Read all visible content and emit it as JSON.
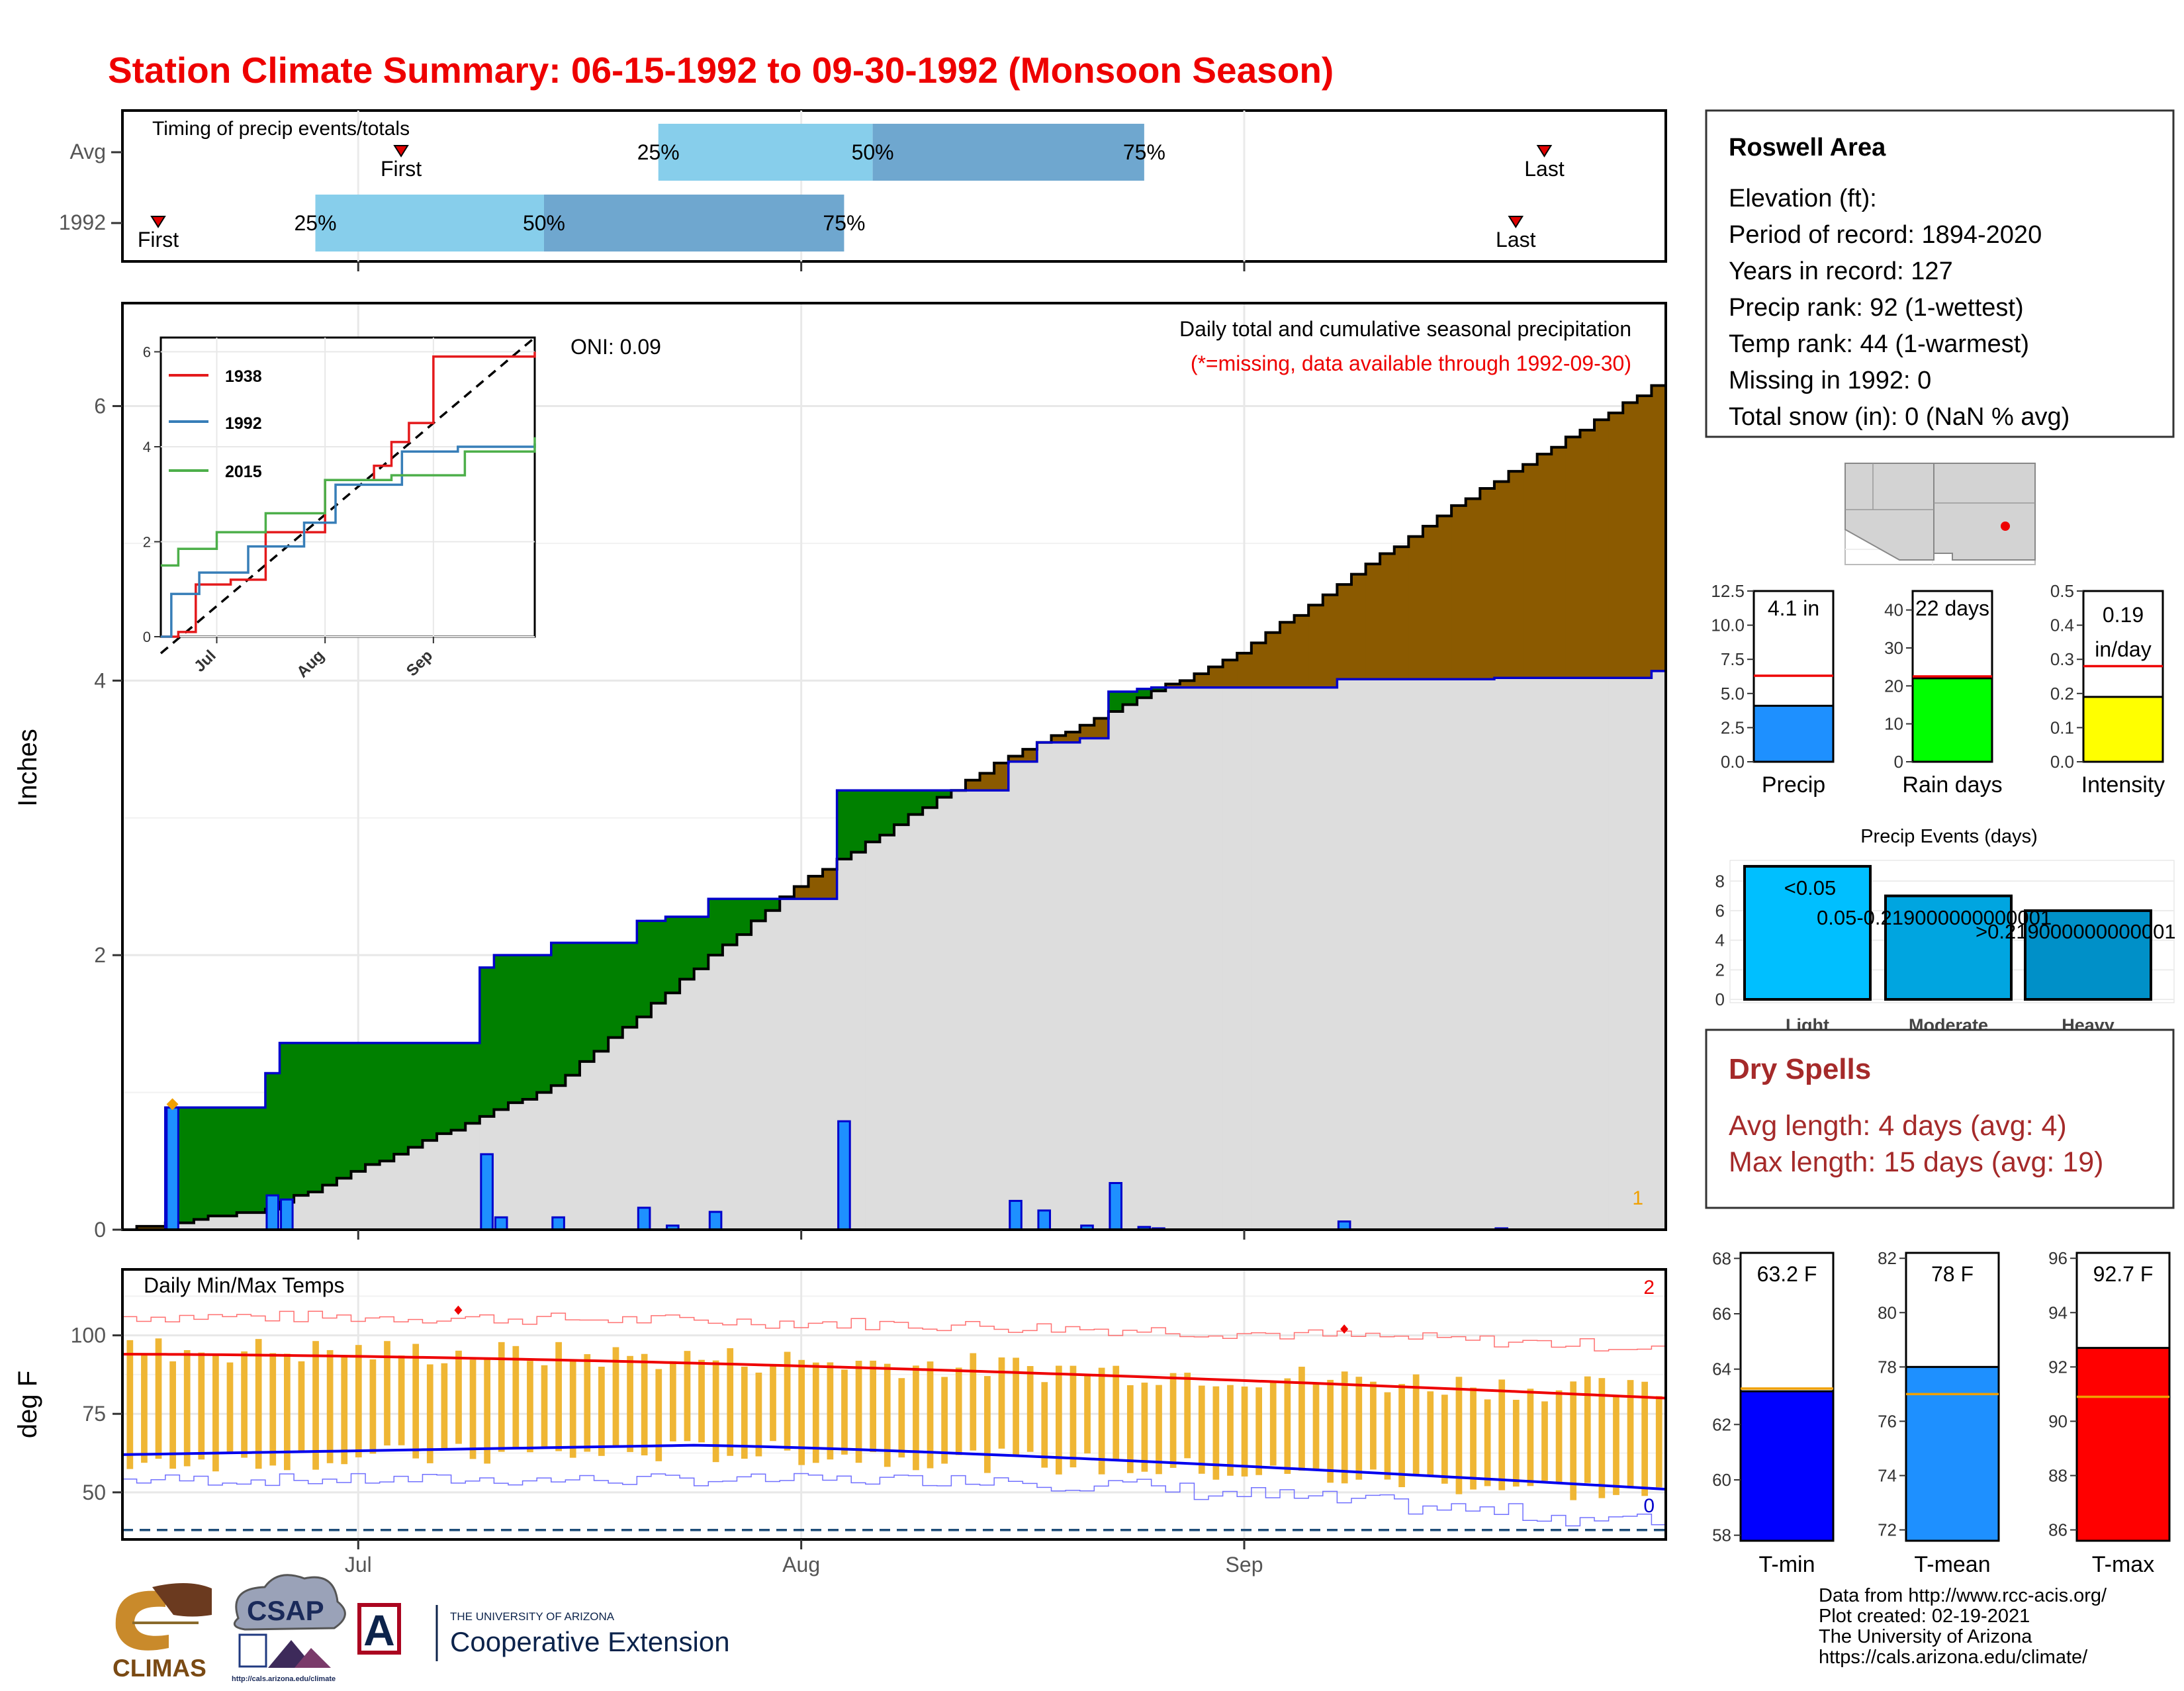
{
  "title": "Station Climate Summary: 06-15-1992 to 09-30-1992 (Monsoon Season)",
  "timing": {
    "title": "Timing of precip events/totals",
    "rows": [
      {
        "label": "Avg",
        "first": "07-04",
        "last": "09-22",
        "p25": "07-22",
        "p50": "08-06",
        "p75": "08-25"
      },
      {
        "label": "1992",
        "first": "06-17",
        "last": "09-20",
        "p25": "06-28",
        "p50": "07-14",
        "p75": "08-04"
      }
    ],
    "first_label": "First",
    "last_label": "Last",
    "p25_label": "25%",
    "p50_label": "50%",
    "p75_label": "75%",
    "colors": {
      "light": "#87ceeb",
      "dark": "#6fa7cf"
    }
  },
  "precip_panel": {
    "ylabel": "Inches",
    "note_title": "Daily total and cumulative seasonal precipitation",
    "note_missing": "(*=missing, data available through 1992-09-30)",
    "oni": "ONI: 0.09",
    "corner_count": "1",
    "yticks": [
      "0",
      "2",
      "4",
      "6"
    ],
    "xticks": [
      "Jul",
      "Aug",
      "Sep"
    ],
    "colors": {
      "above": "#008000",
      "below": "#8b5a00",
      "bars": "#1e90ff",
      "fill": "#dddddd"
    }
  },
  "inset": {
    "yticks": [
      "0",
      "2",
      "4",
      "6"
    ],
    "xticks": [
      "Jul",
      "Aug",
      "Sep"
    ],
    "legend": [
      "1938",
      "1992",
      "2015"
    ],
    "colors": [
      "#e41a1c",
      "#377eb8",
      "#4daf4a"
    ]
  },
  "temp_panel": {
    "ylabel": "deg F",
    "title": "Daily Min/Max Temps",
    "count_max": "2",
    "count_min": "0",
    "yticks": [
      "50",
      "75",
      "100"
    ],
    "xticks": [
      "Jul",
      "Aug",
      "Sep"
    ]
  },
  "station_box": {
    "name": "Roswell Area",
    "lines": [
      "Elevation (ft):",
      "Period of record: 1894-2020",
      "Years in record: 127",
      "Precip rank: 92 (1-wettest)",
      "Temp rank: 44 (1-warmest)",
      "Missing in 1992: 0",
      "Total snow (in): 0 (NaN % avg)"
    ]
  },
  "mini_bars": [
    {
      "label": "Precip",
      "value_text": "4.1 in",
      "value": 4.1,
      "avg": 6.3,
      "ymax": 12.5,
      "yticks": [
        "0.0",
        "2.5",
        "5.0",
        "7.5",
        "10.0",
        "12.5"
      ],
      "color": "#1e90ff"
    },
    {
      "label": "Rain days",
      "value_text": "22 days",
      "value": 22,
      "avg": 22.5,
      "ymax": 45,
      "yticks": [
        "0",
        "10",
        "20",
        "30",
        "40"
      ],
      "color": "#00ff00"
    },
    {
      "label": "Intensity",
      "value_text": "0.19",
      "value_text2": "in/day",
      "value": 0.19,
      "avg": 0.28,
      "ymax": 0.5,
      "yticks": [
        "0.0",
        "0.1",
        "0.2",
        "0.3",
        "0.4",
        "0.5"
      ],
      "color": "#ffff00"
    }
  ],
  "precip_events": {
    "title": "Precip Events (days)",
    "yticks": [
      "0",
      "2",
      "4",
      "6",
      "8"
    ],
    "categories": [
      "Light",
      "Moderate",
      "Heavy"
    ],
    "thresholds": [
      "<0.05",
      "0.05-0.219000000000001",
      ">0.219000000000001"
    ],
    "values": [
      9,
      7,
      6
    ],
    "colors": [
      "#00bfff",
      "#00a5e0",
      "#0090c8"
    ]
  },
  "dry_spells": {
    "title": "Dry Spells",
    "avg_length": "Avg length: 4 days (avg: 4)",
    "max_length": "Max length: 15 days (avg: 19)",
    "color": "#a52a2a"
  },
  "temp_bars": [
    {
      "label": "T-min",
      "value_text": "63.2 F",
      "value": 63.2,
      "avg": 63.3,
      "ymin": 57.8,
      "ymax": 68.2,
      "yticks": [
        "58",
        "60",
        "62",
        "64",
        "66",
        "68"
      ],
      "color": "#0000ff"
    },
    {
      "label": "T-mean",
      "value_text": "78 F",
      "value": 78.0,
      "avg": 77.0,
      "ymin": 71.6,
      "ymax": 82.2,
      "yticks": [
        "72",
        "74",
        "76",
        "78",
        "80",
        "82"
      ],
      "color": "#1e90ff"
    },
    {
      "label": "T-max",
      "value_text": "92.7 F",
      "value": 92.7,
      "avg": 90.9,
      "ymin": 85.6,
      "ymax": 96.2,
      "yticks": [
        "86",
        "88",
        "90",
        "92",
        "94",
        "96"
      ],
      "color": "#ff0000"
    }
  ],
  "logos": {
    "climas": "CLIMAS",
    "csap": "CSAP",
    "csap_url": "http://cals.arizona.edu/climate",
    "ua_small": "THE UNIVERSITY OF ARIZONA",
    "ua_big": "Cooperative Extension",
    "ua_letter": "A"
  },
  "footer": [
    "Data from http://www.rcc-acis.org/",
    "Plot created: 02-19-2021",
    "The University of Arizona",
    "https://cals.arizona.edu/climate/"
  ],
  "chart_data": [
    {
      "type": "bar",
      "title": "Timing of precip events/totals",
      "categories": [
        "Avg",
        "1992"
      ],
      "series": [
        {
          "name": "First",
          "values": [
            "07-04",
            "06-17"
          ]
        },
        {
          "name": "25%",
          "values": [
            "07-22",
            "06-28"
          ]
        },
        {
          "name": "50%",
          "values": [
            "08-06",
            "07-14"
          ]
        },
        {
          "name": "75%",
          "values": [
            "08-25",
            "08-04"
          ]
        },
        {
          "name": "Last",
          "values": [
            "09-22",
            "09-20"
          ]
        }
      ]
    },
    {
      "type": "area",
      "title": "Daily total and cumulative seasonal precipitation",
      "ylabel": "Inches",
      "ylim": [
        0,
        6.75
      ],
      "x_range": [
        "1992-06-15",
        "1992-09-30"
      ],
      "daily_precip": [
        [
          "06-18",
          0.89
        ],
        [
          "06-25",
          0.25
        ],
        [
          "06-26",
          0.22
        ],
        [
          "07-10",
          0.55
        ],
        [
          "07-11",
          0.09
        ],
        [
          "07-15",
          0.09
        ],
        [
          "07-21",
          0.16
        ],
        [
          "07-23",
          0.03
        ],
        [
          "07-26",
          0.13
        ],
        [
          "08-04",
          0.79
        ],
        [
          "08-16",
          0.21
        ],
        [
          "08-18",
          0.14
        ],
        [
          "08-21",
          0.03
        ],
        [
          "08-23",
          0.34
        ],
        [
          "08-25",
          0.02
        ],
        [
          "08-26",
          0.01
        ],
        [
          "09-08",
          0.06
        ],
        [
          "09-19",
          0.01
        ]
      ],
      "cumulative_1992": [
        [
          "06-15",
          0.0
        ],
        [
          "06-18",
          0.89
        ],
        [
          "06-25",
          1.14
        ],
        [
          "06-26",
          1.36
        ],
        [
          "07-10",
          1.91
        ],
        [
          "07-11",
          2.0
        ],
        [
          "07-15",
          2.09
        ],
        [
          "07-21",
          2.25
        ],
        [
          "07-23",
          2.28
        ],
        [
          "07-26",
          2.41
        ],
        [
          "08-04",
          3.2
        ],
        [
          "08-16",
          3.41
        ],
        [
          "08-18",
          3.55
        ],
        [
          "08-21",
          3.58
        ],
        [
          "08-23",
          3.92
        ],
        [
          "08-25",
          3.94
        ],
        [
          "08-26",
          3.95
        ],
        [
          "09-08",
          4.01
        ],
        [
          "09-19",
          4.02
        ],
        [
          "09-30",
          4.07
        ]
      ],
      "cumulative_average": [
        [
          "06-15",
          0.0
        ],
        [
          "06-25",
          0.15
        ],
        [
          "07-15",
          1.05
        ],
        [
          "08-01",
          2.5
        ],
        [
          "08-15",
          3.4
        ],
        [
          "09-01",
          4.2
        ],
        [
          "09-15",
          5.2
        ],
        [
          "09-30",
          6.15
        ]
      ]
    },
    {
      "type": "line",
      "ylim": [
        0,
        6.3
      ],
      "series": [
        {
          "name": "1938",
          "values": [
            [
              "06-15",
              0.0
            ],
            [
              "06-20",
              0.1
            ],
            [
              "06-25",
              1.1
            ],
            [
              "07-05",
              1.2
            ],
            [
              "07-15",
              2.2
            ],
            [
              "08-01",
              3.3
            ],
            [
              "08-15",
              3.6
            ],
            [
              "08-20",
              4.1
            ],
            [
              "08-25",
              4.5
            ],
            [
              "09-01",
              5.9
            ],
            [
              "09-30",
              6.0
            ]
          ]
        },
        {
          "name": "1992",
          "values": [
            [
              "06-15",
              0.0
            ],
            [
              "06-18",
              0.9
            ],
            [
              "06-26",
              1.35
            ],
            [
              "07-10",
              1.9
            ],
            [
              "07-26",
              2.4
            ],
            [
              "08-04",
              3.2
            ],
            [
              "08-23",
              3.9
            ],
            [
              "09-08",
              4.0
            ],
            [
              "09-30",
              4.07
            ]
          ]
        },
        {
          "name": "2015",
          "values": [
            [
              "06-15",
              1.5
            ],
            [
              "06-20",
              1.85
            ],
            [
              "07-01",
              2.2
            ],
            [
              "07-15",
              2.6
            ],
            [
              "08-01",
              3.3
            ],
            [
              "08-20",
              3.4
            ],
            [
              "09-10",
              3.9
            ],
            [
              "09-30",
              4.2
            ]
          ]
        }
      ]
    },
    {
      "type": "bar",
      "title": "Daily Min/Max Temps",
      "ylabel": "deg F",
      "ylim": [
        35,
        121
      ],
      "max_normal_start": 94,
      "max_normal_end": 80,
      "min_normal_start": 62,
      "min_normal_end": 51,
      "record_max_approx": 108,
      "record_min_approx": 51
    },
    {
      "type": "bar",
      "title": "Precip Events (days)",
      "categories": [
        "Light",
        "Moderate",
        "Heavy"
      ],
      "values": [
        9,
        7,
        6
      ]
    }
  ]
}
